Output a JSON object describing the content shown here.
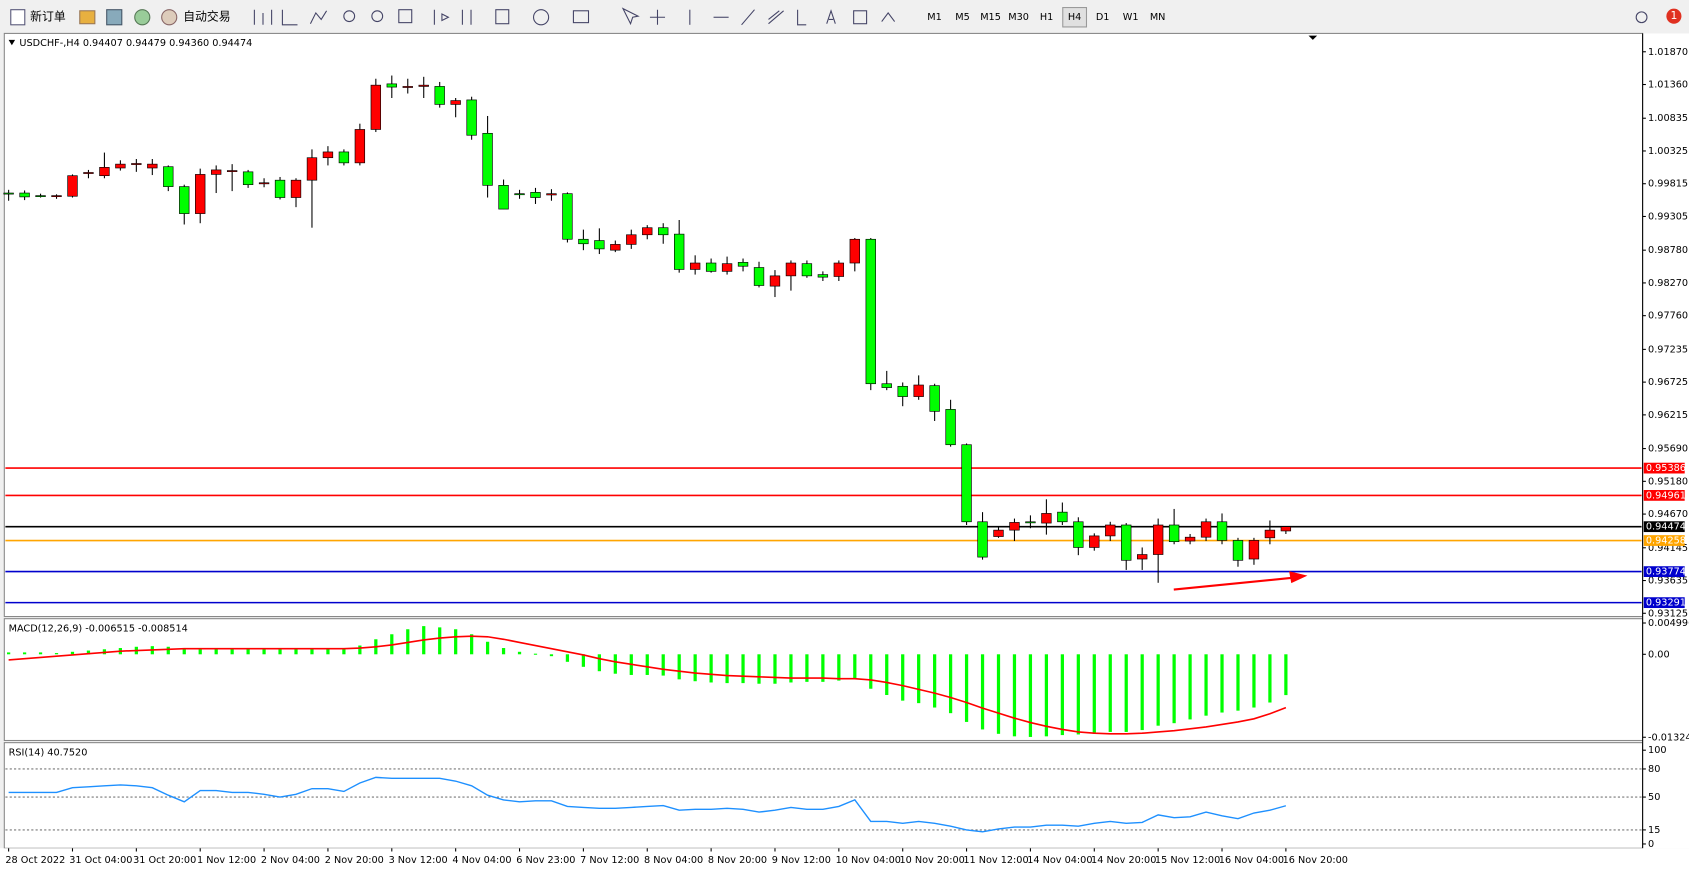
{
  "toolbar": {
    "new_order": "新订单",
    "auto_trading": "自动交易",
    "timeframes": [
      "M1",
      "M5",
      "M15",
      "M30",
      "H1",
      "H4",
      "D1",
      "W1",
      "MN"
    ],
    "notifications": "1"
  },
  "chart_data": [
    {
      "type": "candlestick",
      "title": "USDCHF-,H4 0.94407 0.94479 0.94360 0.94474",
      "categories": [
        "28 Oct 2022",
        null,
        null,
        null,
        "31 Oct 04:00",
        null,
        null,
        null,
        "31 Oct 20:00",
        null,
        null,
        null,
        "1 Nov 12:00",
        null,
        null,
        null,
        "2 Nov 04:00",
        null,
        null,
        null,
        "2 Nov 20:00",
        null,
        null,
        null,
        "3 Nov 12:00",
        null,
        null,
        null,
        "4 Nov 04:00",
        null,
        null,
        null,
        "6 Nov 23:00",
        null,
        null,
        null,
        "7 Nov 12:00",
        null,
        null,
        null,
        "8 Nov 04:00",
        null,
        null,
        null,
        "8 Nov 20:00",
        null,
        null,
        null,
        "9 Nov 12:00",
        null,
        null,
        null,
        "10 Nov 04:00",
        null,
        null,
        null,
        "10 Nov 20:00",
        null,
        null,
        null,
        "11 Nov 12:00",
        null,
        null,
        null,
        "14 Nov 04:00",
        null,
        null,
        null,
        "14 Nov 20:00",
        null,
        null,
        null,
        "15 Nov 12:00",
        null,
        null,
        null,
        "16 Nov 04:00",
        null,
        null,
        null,
        "16 Nov 20:00"
      ],
      "open": [
        0.9967,
        0.9967,
        0.9963,
        0.9962,
        0.9962,
        0.9998,
        0.9994,
        1.0006,
        1.0012,
        1.0006,
        1.0008,
        0.9977,
        0.9935,
        0.9996,
        1.0001,
        1.0,
        0.9982,
        0.9987,
        0.996,
        0.9987,
        1.0022,
        1.0031,
        1.0014,
        1.0066,
        1.0137,
        1.0132,
        1.0133,
        1.0133,
        1.0105,
        1.0112,
        1.006,
        0.9979,
        0.9966,
        0.9968,
        0.9964,
        0.9966,
        0.9895,
        0.9893,
        0.9878,
        0.9887,
        0.9902,
        0.9913,
        0.9903,
        0.9848,
        0.9858,
        0.9845,
        0.9859,
        0.9851,
        0.9822,
        0.9838,
        0.9857,
        0.984,
        0.9837,
        0.9858,
        0.9895,
        0.967,
        0.9666,
        0.965,
        0.9667,
        0.963,
        0.9575,
        0.9455,
        0.9432,
        0.9442,
        0.9455,
        0.9453,
        0.947,
        0.9455,
        0.9415,
        0.9433,
        0.945,
        0.9397,
        0.9404,
        0.945,
        0.9425,
        0.9431,
        0.9455,
        0.9426,
        0.9397,
        0.943,
        0.94407
      ],
      "high": [
        0.9972,
        0.9971,
        0.9966,
        0.9965,
        0.9996,
        1.0003,
        1.003,
        1.0018,
        1.002,
        1.002,
        1.001,
        0.998,
        1.0005,
        1.001,
        1.0012,
        1.0003,
        0.999,
        0.9992,
        0.999,
        1.0035,
        1.004,
        1.0035,
        1.0075,
        1.0145,
        1.015,
        1.0145,
        1.0148,
        1.014,
        1.0115,
        1.0117,
        1.0087,
        0.9988,
        0.9972,
        0.9975,
        0.9973,
        0.9968,
        0.991,
        0.9912,
        0.9893,
        0.991,
        0.9917,
        0.992,
        0.9925,
        0.987,
        0.9865,
        0.9868,
        0.9865,
        0.986,
        0.9847,
        0.9862,
        0.9862,
        0.9845,
        0.9862,
        0.9897,
        0.9897,
        0.969,
        0.9672,
        0.9683,
        0.967,
        0.9645,
        0.9577,
        0.947,
        0.9448,
        0.946,
        0.9465,
        0.949,
        0.9485,
        0.9462,
        0.9437,
        0.9455,
        0.9453,
        0.9415,
        0.946,
        0.9475,
        0.9436,
        0.946,
        0.9468,
        0.943,
        0.943,
        0.9457,
        0.94479
      ],
      "low": [
        0.9955,
        0.9956,
        0.996,
        0.9958,
        0.996,
        0.999,
        0.999,
        1.0002,
        1.0,
        0.9995,
        0.997,
        0.9918,
        0.992,
        0.9967,
        0.997,
        0.9975,
        0.9976,
        0.9957,
        0.9945,
        0.9913,
        1.001,
        1.001,
        1.001,
        1.0062,
        1.0115,
        1.0122,
        1.0115,
        1.01,
        1.0085,
        1.005,
        0.996,
        0.9942,
        0.9958,
        0.995,
        0.9955,
        0.989,
        0.9878,
        0.9872,
        0.9875,
        0.988,
        0.9895,
        0.9888,
        0.9843,
        0.984,
        0.9843,
        0.984,
        0.9845,
        0.982,
        0.9805,
        0.9815,
        0.9835,
        0.983,
        0.983,
        0.9845,
        0.966,
        0.966,
        0.9635,
        0.9645,
        0.9612,
        0.9572,
        0.945,
        0.9396,
        0.943,
        0.9425,
        0.9445,
        0.9435,
        0.945,
        0.9403,
        0.941,
        0.9425,
        0.938,
        0.938,
        0.936,
        0.942,
        0.942,
        0.9425,
        0.942,
        0.9385,
        0.9388,
        0.942,
        0.9436
      ],
      "close": [
        0.9966,
        0.9961,
        0.9962,
        0.9963,
        0.9994,
        0.9999,
        1.0007,
        1.0012,
        1.0013,
        1.0012,
        0.9977,
        0.9935,
        0.9996,
        1.0003,
        1.0002,
        0.998,
        0.9983,
        0.996,
        0.9987,
        1.0022,
        1.0031,
        1.0014,
        1.0066,
        1.0135,
        1.0132,
        1.0133,
        1.0135,
        1.0105,
        1.0111,
        1.0057,
        0.9979,
        0.9942,
        0.9965,
        0.996,
        0.9966,
        0.9895,
        0.9888,
        0.988,
        0.9887,
        0.9902,
        0.9913,
        0.9902,
        0.9848,
        0.9858,
        0.9845,
        0.9857,
        0.9853,
        0.9823,
        0.9838,
        0.9858,
        0.9838,
        0.9836,
        0.9858,
        0.9895,
        0.967,
        0.9664,
        0.965,
        0.9668,
        0.9627,
        0.9575,
        0.9455,
        0.94,
        0.9442,
        0.9454,
        0.9454,
        0.9468,
        0.9455,
        0.9415,
        0.9433,
        0.945,
        0.9395,
        0.9404,
        0.945,
        0.9424,
        0.9431,
        0.9455,
        0.9426,
        0.9395,
        0.9426,
        0.9442,
        0.94474
      ],
      "up_color": "#ff0000",
      "down_color": "#00ff00",
      "ylim": [
        0.93091,
        1.02139
      ],
      "yticks": [
        {
          "value": 1.0187,
          "label": "1.01870"
        },
        {
          "value": 1.0136,
          "label": "1.01360"
        },
        1.00835,
        1.00325,
        0.99815,
        0.99305,
        {
          "value": 0.9878,
          "label": "0.98780"
        },
        {
          "value": 0.9827,
          "label": "0.98270"
        },
        {
          "value": 0.9776,
          "label": "0.97760"
        },
        0.97235,
        0.96725,
        0.96215,
        {
          "value": 0.9569,
          "label": "0.95690"
        },
        {
          "value": 0.9518,
          "label": "0.95180"
        },
        {
          "value": 0.9467,
          "label": "0.94670"
        },
        0.94145,
        0.93635,
        0.93125
      ],
      "levels": [
        {
          "value": 0.95386,
          "color": "#ff0000"
        },
        {
          "value": 0.94961,
          "color": "#ff0000"
        },
        {
          "value": 0.94474,
          "color": "#000000"
        },
        {
          "value": 0.94258,
          "color": "#ffa500"
        },
        {
          "value": 0.93774,
          "color": "#0000cd"
        },
        {
          "value": 0.93291,
          "color": "#0000cd"
        }
      ]
    },
    {
      "type": "macd",
      "title": "MACD(12,26,9) -0.006515 -0.008514",
      "series": [
        {
          "color": "#00ff00",
          "values": [
            0.0003,
            0.0003,
            0.0003,
            0.0002,
            0.0004,
            0.0006,
            0.0008,
            0.001,
            0.0012,
            0.0013,
            0.0012,
            0.0009,
            0.0009,
            0.001,
            0.001,
            0.001,
            0.0009,
            0.0008,
            0.0008,
            0.0009,
            0.001,
            0.001,
            0.0014,
            0.0024,
            0.0032,
            0.004,
            0.0045,
            0.0043,
            0.004,
            0.0032,
            0.002,
            0.001,
            0.0004,
            0.0001,
            -0.0003,
            -0.0012,
            -0.002,
            -0.0027,
            -0.0031,
            -0.0033,
            -0.0033,
            -0.0034,
            -0.004,
            -0.0043,
            -0.0045,
            -0.0046,
            -0.0046,
            -0.0047,
            -0.0047,
            -0.0045,
            -0.0044,
            -0.0044,
            -0.0042,
            -0.0039,
            -0.0055,
            -0.0065,
            -0.0074,
            -0.0078,
            -0.0085,
            -0.0094,
            -0.0108,
            -0.012,
            -0.0127,
            -0.0131,
            -0.0132,
            -0.0131,
            -0.0129,
            -0.0128,
            -0.0127,
            -0.0124,
            -0.0124,
            -0.0121,
            -0.0114,
            -0.011,
            -0.0104,
            -0.0098,
            -0.0093,
            -0.009,
            -0.0085,
            -0.0077,
            -0.006515
          ]
        },
        {
          "color": "#ff0000",
          "values": [
            -0.0009,
            -0.0007,
            -0.0005,
            -0.0003,
            -0.0001,
            0.0001,
            0.0003,
            0.0005,
            0.0006,
            0.0007,
            0.0008,
            0.0009,
            0.0009,
            0.0009,
            0.0009,
            0.0009,
            0.0009,
            0.0009,
            0.0009,
            0.0009,
            0.0009,
            0.0009,
            0.001,
            0.0012,
            0.0015,
            0.0019,
            0.0023,
            0.0026,
            0.0028,
            0.0029,
            0.0028,
            0.0024,
            0.0019,
            0.0014,
            0.0009,
            0.0004,
            -0.0001,
            -0.0007,
            -0.0012,
            -0.0016,
            -0.002,
            -0.0024,
            -0.0027,
            -0.003,
            -0.0032,
            -0.0034,
            -0.0035,
            -0.0036,
            -0.0037,
            -0.0038,
            -0.0038,
            -0.0038,
            -0.0039,
            -0.0039,
            -0.0041,
            -0.0045,
            -0.005,
            -0.0056,
            -0.0062,
            -0.0069,
            -0.0077,
            -0.0086,
            -0.0094,
            -0.0102,
            -0.0109,
            -0.0115,
            -0.012,
            -0.0124,
            -0.0126,
            -0.0127,
            -0.0127,
            -0.0126,
            -0.0124,
            -0.0122,
            -0.0119,
            -0.0116,
            -0.0112,
            -0.0108,
            -0.0103,
            -0.0095,
            -0.008514
          ]
        }
      ],
      "ylim": [
        -0.013248,
        0.004996
      ],
      "yticks": [
        0.004996,
        {
          "value": 0,
          "label": "0.00"
        },
        -0.013248
      ]
    },
    {
      "type": "line",
      "title": "RSI(14) 40.7520",
      "color": "#1e90ff",
      "values": [
        55,
        55,
        55,
        55,
        60,
        61,
        62,
        63,
        62,
        60,
        52,
        45,
        57,
        57,
        55,
        55,
        53,
        50,
        53,
        59,
        59,
        56,
        65,
        71,
        70,
        70,
        70,
        70,
        67,
        62,
        52,
        47,
        45,
        46,
        46,
        40,
        39,
        38,
        38,
        39,
        40,
        41,
        36,
        37,
        37,
        38,
        37,
        34,
        36,
        39,
        37,
        37,
        40,
        47,
        24,
        24,
        22,
        24,
        22,
        19,
        15,
        13,
        16,
        18,
        18,
        20,
        20,
        19,
        22,
        24,
        22,
        23,
        31,
        28,
        29,
        34,
        30,
        27,
        33,
        36,
        40.752
      ],
      "ylim": [
        0,
        100
      ],
      "yticks": [
        100,
        80,
        50,
        15,
        0
      ]
    }
  ]
}
